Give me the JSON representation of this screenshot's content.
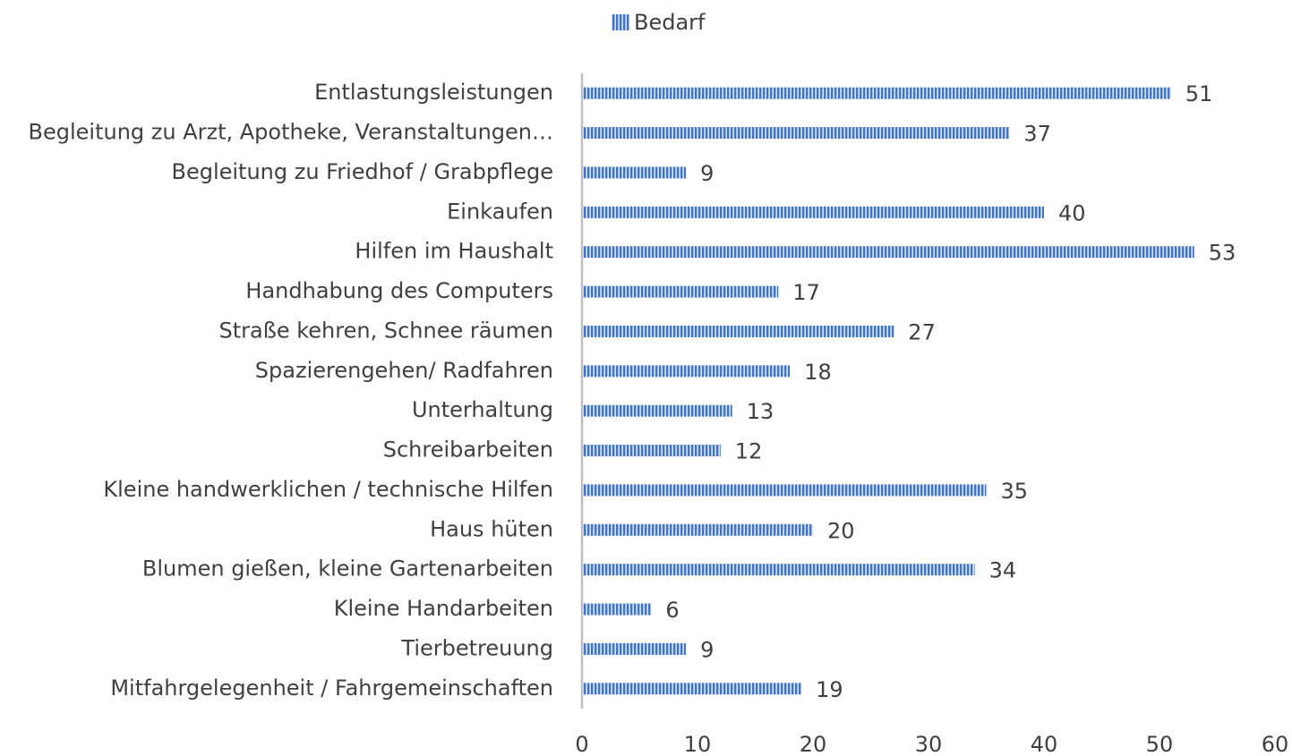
{
  "chart_data": {
    "type": "bar",
    "orientation": "horizontal",
    "categories": [
      "Entlastungsleistungen",
      "Begleitung zu Arzt, Apotheke, Veranstaltungen…",
      "Begleitung zu Friedhof / Grabpflege",
      "Einkaufen",
      "Hilfen im Haushalt",
      "Handhabung des Computers",
      "Straße kehren, Schnee räumen",
      "Spazierengehen/ Radfahren",
      "Unterhaltung",
      "Schreibarbeiten",
      "Kleine handwerklichen / technische Hilfen",
      "Haus hüten",
      "Blumen gießen, kleine Gartenarbeiten",
      "Kleine Handarbeiten",
      "Tierbetreuung",
      "Mitfahrgelegenheit / Fahrgemeinschaften"
    ],
    "series": [
      {
        "name": "Bedarf",
        "color": "#4472c4",
        "values": [
          51,
          37,
          9,
          40,
          53,
          17,
          27,
          18,
          13,
          12,
          35,
          20,
          34,
          6,
          9,
          19
        ]
      }
    ],
    "xlim": [
      0,
      60
    ],
    "xticks": [
      0,
      10,
      20,
      30,
      40,
      50,
      60
    ],
    "legend": "top",
    "grid": false
  }
}
